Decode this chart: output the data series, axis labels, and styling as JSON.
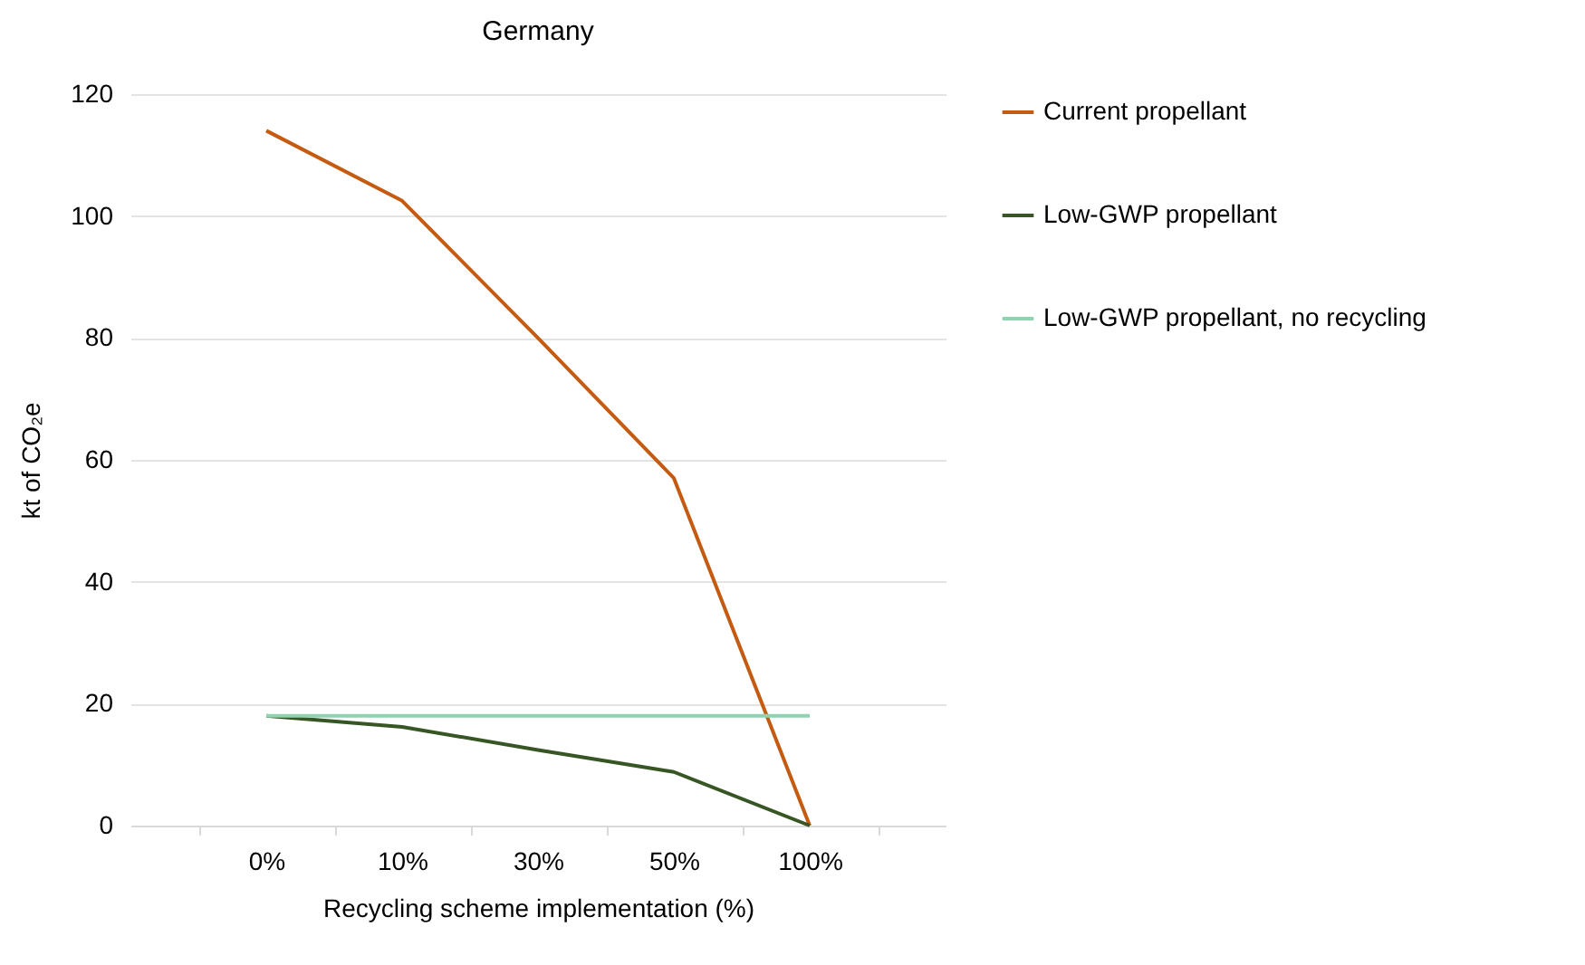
{
  "chart_data": {
    "type": "line",
    "title": "Germany",
    "xlabel": "Recycling scheme implementation (%)",
    "ylabel": "kt of CO₂e",
    "categories": [
      "0%",
      "10%",
      "30%",
      "50%",
      "100%"
    ],
    "series": [
      {
        "name": "Current propellant",
        "color": "#c55a11",
        "values": [
          114,
          102.5,
          80,
          57,
          0
        ]
      },
      {
        "name": "Low-GWP propellant",
        "color": "#375623",
        "values": [
          18,
          16.2,
          12.4,
          8.8,
          0
        ]
      },
      {
        "name": "Low-GWP propellant, no recycling",
        "color": "#8fd3b0",
        "values": [
          18,
          18,
          18,
          18,
          18
        ]
      }
    ],
    "ylim": [
      0,
      120
    ],
    "yticks": [
      0,
      20,
      40,
      60,
      80,
      100,
      120
    ],
    "grid": "y",
    "legend": "right",
    "marker": "none",
    "line_style": "solid"
  }
}
